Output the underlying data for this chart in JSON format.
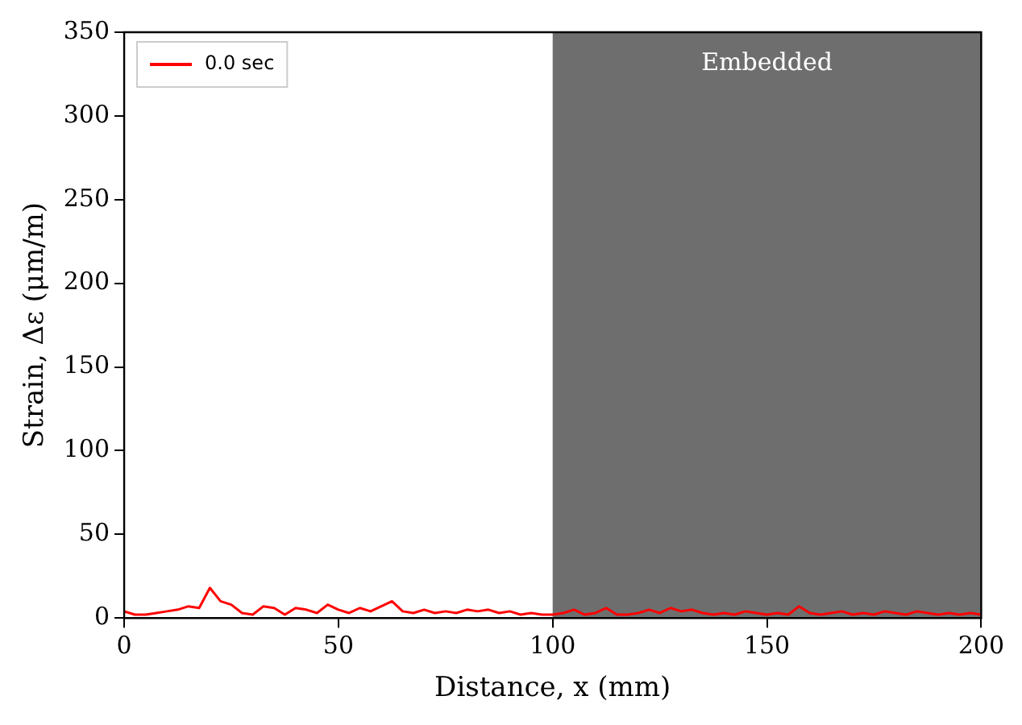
{
  "chart_data": {
    "type": "line",
    "xlabel": "Distance, x (mm)",
    "ylabel": "Strain, Δε (μm/m)",
    "x": [
      0,
      2.5,
      5,
      7.5,
      10,
      12.5,
      15,
      17.5,
      20,
      22.5,
      25,
      27.5,
      30,
      32.5,
      35,
      37.5,
      40,
      42.5,
      45,
      47.5,
      50,
      52.5,
      55,
      57.5,
      60,
      62.5,
      65,
      67.5,
      70,
      72.5,
      75,
      77.5,
      80,
      82.5,
      85,
      87.5,
      90,
      92.5,
      95,
      97.5,
      100,
      102.5,
      105,
      107.5,
      110,
      112.5,
      115,
      117.5,
      120,
      122.5,
      125,
      127.5,
      130,
      132.5,
      135,
      137.5,
      140,
      142.5,
      145,
      147.5,
      150,
      152.5,
      155,
      157.5,
      160,
      162.5,
      165,
      167.5,
      170,
      172.5,
      175,
      177.5,
      180,
      182.5,
      185,
      187.5,
      190,
      192.5,
      195,
      197.5,
      200
    ],
    "series": [
      {
        "name": "0.0 sec",
        "color": "#ff0000",
        "values": [
          4,
          2,
          2,
          3,
          4,
          5,
          7,
          6,
          18,
          10,
          8,
          3,
          2,
          7,
          6,
          2,
          6,
          5,
          3,
          8,
          5,
          3,
          6,
          4,
          7,
          10,
          4,
          3,
          5,
          3,
          4,
          3,
          5,
          4,
          5,
          3,
          4,
          2,
          3,
          2,
          2,
          3,
          5,
          2,
          3,
          6,
          2,
          2,
          3,
          5,
          3,
          6,
          4,
          5,
          3,
          2,
          3,
          2,
          4,
          3,
          2,
          3,
          2,
          7,
          3,
          2,
          3,
          4,
          2,
          3,
          2,
          4,
          3,
          2,
          4,
          3,
          2,
          3,
          2,
          3,
          2
        ]
      }
    ],
    "xlim": [
      0,
      200
    ],
    "ylim": [
      0,
      350
    ],
    "xticks": [
      0,
      50,
      100,
      150,
      200
    ],
    "yticks": [
      0,
      50,
      100,
      150,
      200,
      250,
      300,
      350
    ],
    "bands": [
      {
        "axis": "x",
        "from": 100,
        "to": 200,
        "label": "Embedded",
        "color": "#6e6e6e"
      }
    ],
    "grid": false,
    "legend": "top left",
    "marker": "none",
    "line_style": "solid"
  }
}
